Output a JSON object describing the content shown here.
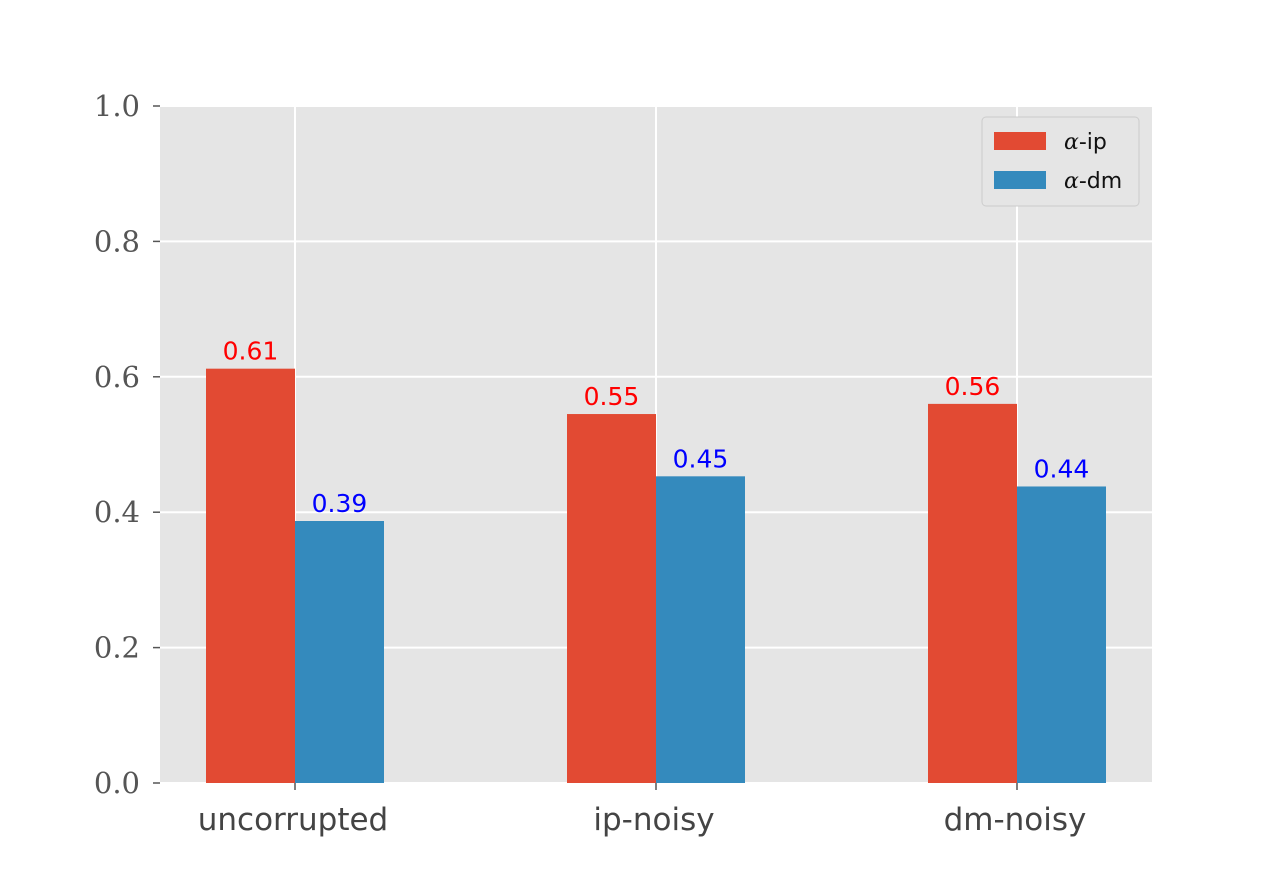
{
  "chart_data": {
    "type": "bar",
    "title": "",
    "xlabel": "",
    "ylabel": "",
    "ylim": [
      0,
      1.0
    ],
    "yticks": [
      "0.0",
      "0.2",
      "0.4",
      "0.6",
      "0.8",
      "1.0"
    ],
    "categories": [
      "uncorrupted",
      "ip-noisy",
      "dm-noisy"
    ],
    "series": [
      {
        "name_symbol": "α",
        "name_suffix": "-ip",
        "values": [
          0.612,
          0.545,
          0.56
        ],
        "labels": [
          "0.61",
          "0.55",
          "0.56"
        ],
        "color": "#E24A33",
        "label_color": "#ff0000"
      },
      {
        "name_symbol": "α",
        "name_suffix": "-dm",
        "values": [
          0.387,
          0.453,
          0.438
        ],
        "labels": [
          "0.39",
          "0.45",
          "0.44"
        ],
        "color": "#348ABD",
        "label_color": "#0000ff"
      }
    ],
    "grid": true,
    "legend_position": "top-right",
    "background_color": "#E5E5E5",
    "grid_color": "#ffffff"
  }
}
